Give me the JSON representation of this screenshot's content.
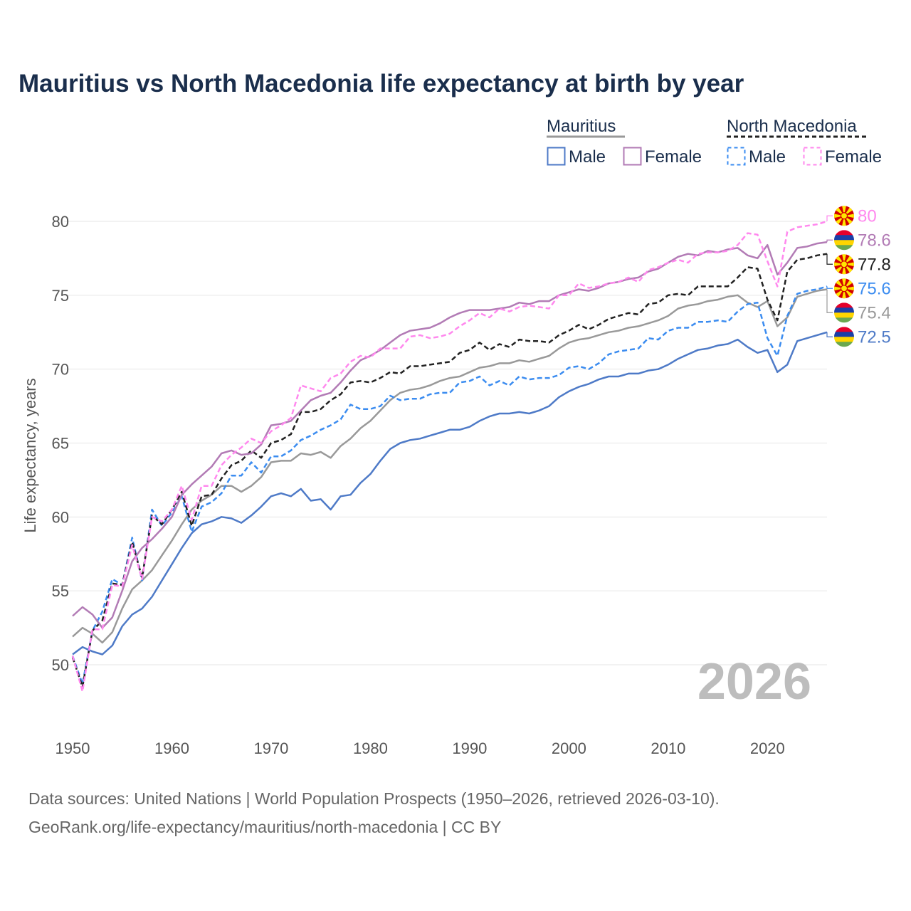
{
  "chart_data": {
    "type": "line",
    "title": "Mauritius vs North Macedonia life expectancy at birth by year",
    "xlabel": "",
    "ylabel": "Life expectancy, years",
    "xlim": [
      1950,
      2026
    ],
    "ylim": [
      47,
      82
    ],
    "x_ticks": [
      "1950",
      "1960",
      "1970",
      "1980",
      "1990",
      "2000",
      "2010",
      "2020"
    ],
    "y_ticks": [
      "50",
      "55",
      "60",
      "65",
      "70",
      "75",
      "80"
    ],
    "grid": true,
    "year_watermark": "2026",
    "legend": {
      "groups": [
        {
          "name": "Mauritius",
          "items": [
            "Male",
            "Female"
          ]
        },
        {
          "name": "North Macedonia",
          "items": [
            "Male",
            "Female"
          ]
        }
      ],
      "placement": "top-right"
    },
    "start_year": 1950,
    "series": [
      {
        "name": "North Macedonia Female",
        "country": "North Macedonia",
        "flag": "north-macedonia",
        "color": "#ff88ee",
        "dashed": true,
        "end_label": "80",
        "values": [
          50.6,
          48.2,
          52.4,
          52.4,
          55.4,
          55.3,
          58.1,
          55.8,
          60.0,
          59.7,
          60.5,
          62.1,
          59.8,
          62.1,
          62.1,
          63.5,
          64.2,
          64.7,
          65.3,
          65.0,
          65.8,
          66.2,
          66.7,
          68.9,
          68.7,
          68.5,
          69.4,
          69.7,
          70.5,
          70.9,
          70.8,
          71.4,
          71.4,
          71.4,
          72.2,
          72.3,
          72.1,
          72.2,
          72.4,
          72.9,
          73.3,
          73.8,
          73.5,
          74.1,
          73.9,
          74.2,
          74.3,
          74.2,
          74.1,
          75.0,
          75.0,
          75.8,
          75.5,
          75.6,
          75.8,
          75.9,
          76.2,
          75.9,
          76.7,
          76.9,
          77.2,
          77.4,
          77.2,
          77.8,
          77.9,
          77.9,
          78.0,
          78.4,
          79.2,
          79.1,
          77.3,
          75.6,
          79.3,
          79.6,
          79.7,
          79.8,
          80.0
        ]
      },
      {
        "name": "Mauritius Female",
        "country": "Mauritius",
        "flag": "mauritius",
        "color": "#b27bb5",
        "dashed": false,
        "end_label": "78.6",
        "values": [
          53.3,
          53.9,
          53.4,
          52.5,
          53.2,
          55.0,
          57.0,
          57.9,
          58.5,
          59.2,
          60.0,
          61.5,
          62.2,
          62.8,
          63.4,
          64.3,
          64.5,
          64.2,
          64.3,
          64.9,
          66.2,
          66.3,
          66.5,
          67.2,
          67.9,
          68.2,
          68.4,
          69.1,
          69.9,
          70.6,
          70.9,
          71.3,
          71.8,
          72.3,
          72.6,
          72.7,
          72.8,
          73.1,
          73.5,
          73.8,
          74.0,
          74.0,
          74.0,
          74.1,
          74.2,
          74.5,
          74.4,
          74.6,
          74.6,
          75.0,
          75.2,
          75.4,
          75.3,
          75.5,
          75.8,
          75.9,
          76.1,
          76.2,
          76.6,
          76.8,
          77.2,
          77.6,
          77.8,
          77.7,
          78.0,
          77.9,
          78.1,
          78.2,
          77.7,
          77.5,
          78.4,
          76.4,
          77.2,
          78.2,
          78.3,
          78.5,
          78.6
        ]
      },
      {
        "name": "North Macedonia",
        "country": "North Macedonia",
        "flag": "north-macedonia",
        "color": "#222222",
        "dashed": true,
        "end_label": "77.8",
        "values": [
          50.5,
          48.5,
          52.3,
          53.0,
          55.5,
          55.4,
          58.3,
          55.9,
          60.1,
          59.5,
          60.5,
          61.7,
          59.4,
          61.4,
          61.5,
          62.6,
          63.5,
          63.8,
          64.5,
          64.0,
          65.0,
          65.2,
          65.6,
          67.1,
          67.1,
          67.3,
          67.9,
          68.3,
          69.1,
          69.2,
          69.1,
          69.4,
          69.8,
          69.7,
          70.2,
          70.2,
          70.3,
          70.4,
          70.5,
          71.1,
          71.3,
          71.8,
          71.3,
          71.7,
          71.5,
          72.0,
          71.9,
          71.9,
          71.8,
          72.3,
          72.6,
          73.0,
          72.7,
          73.0,
          73.4,
          73.6,
          73.8,
          73.7,
          74.4,
          74.5,
          75.0,
          75.1,
          75.0,
          75.6,
          75.6,
          75.6,
          75.6,
          76.2,
          76.9,
          76.8,
          74.7,
          73.3,
          76.6,
          77.4,
          77.5,
          77.7,
          77.8
        ]
      },
      {
        "name": "North Macedonia Male",
        "country": "North Macedonia",
        "flag": "north-macedonia",
        "color": "#3b8cf0",
        "dashed": true,
        "end_label": "75.6",
        "values": [
          50.6,
          48.7,
          52.3,
          53.6,
          55.8,
          55.4,
          58.6,
          55.7,
          60.5,
          59.4,
          60.3,
          61.4,
          59.0,
          60.7,
          61.0,
          61.6,
          62.8,
          62.8,
          63.7,
          63.0,
          64.1,
          64.1,
          64.5,
          65.2,
          65.5,
          65.9,
          66.2,
          66.6,
          67.6,
          67.3,
          67.3,
          67.5,
          68.2,
          67.9,
          68.0,
          68.0,
          68.3,
          68.4,
          68.4,
          69.1,
          69.2,
          69.5,
          68.9,
          69.2,
          68.9,
          69.5,
          69.3,
          69.4,
          69.4,
          69.6,
          70.1,
          70.2,
          70.0,
          70.4,
          71.0,
          71.2,
          71.3,
          71.4,
          72.1,
          72.0,
          72.6,
          72.8,
          72.8,
          73.2,
          73.2,
          73.3,
          73.2,
          73.9,
          74.4,
          74.5,
          72.1,
          70.9,
          73.6,
          75.1,
          75.3,
          75.4,
          75.6
        ]
      },
      {
        "name": "Mauritius",
        "country": "Mauritius",
        "flag": "mauritius",
        "color": "#999999",
        "dashed": false,
        "end_label": "75.4",
        "values": [
          51.9,
          52.5,
          52.1,
          51.5,
          52.2,
          53.8,
          55.1,
          55.7,
          56.4,
          57.4,
          58.4,
          59.5,
          60.5,
          61.1,
          61.5,
          62.1,
          62.1,
          61.7,
          62.1,
          62.7,
          63.7,
          63.8,
          63.8,
          64.3,
          64.2,
          64.4,
          64.0,
          64.8,
          65.3,
          66.0,
          66.5,
          67.2,
          67.9,
          68.4,
          68.6,
          68.7,
          68.9,
          69.2,
          69.4,
          69.5,
          69.8,
          70.1,
          70.2,
          70.4,
          70.4,
          70.6,
          70.5,
          70.7,
          70.9,
          71.4,
          71.8,
          72.0,
          72.1,
          72.3,
          72.5,
          72.6,
          72.8,
          72.9,
          73.1,
          73.3,
          73.6,
          74.1,
          74.3,
          74.4,
          74.6,
          74.7,
          74.9,
          75.0,
          74.5,
          74.2,
          74.6,
          72.9,
          73.5,
          74.9,
          75.1,
          75.3,
          75.4
        ]
      },
      {
        "name": "Mauritius Male",
        "country": "Mauritius",
        "flag": "mauritius",
        "color": "#4e7ac7",
        "dashed": false,
        "end_label": "72.5",
        "values": [
          50.7,
          51.2,
          50.9,
          50.7,
          51.3,
          52.6,
          53.4,
          53.8,
          54.6,
          55.7,
          56.8,
          57.9,
          58.9,
          59.5,
          59.7,
          60.0,
          59.9,
          59.6,
          60.1,
          60.7,
          61.4,
          61.6,
          61.4,
          61.9,
          61.1,
          61.2,
          60.5,
          61.4,
          61.5,
          62.3,
          62.9,
          63.8,
          64.6,
          65.0,
          65.2,
          65.3,
          65.5,
          65.7,
          65.9,
          65.9,
          66.1,
          66.5,
          66.8,
          67.0,
          67.0,
          67.1,
          67.0,
          67.2,
          67.5,
          68.1,
          68.5,
          68.8,
          69.0,
          69.3,
          69.5,
          69.5,
          69.7,
          69.7,
          69.9,
          70.0,
          70.3,
          70.7,
          71.0,
          71.3,
          71.4,
          71.6,
          71.7,
          72.0,
          71.5,
          71.1,
          71.3,
          69.8,
          70.3,
          71.9,
          72.1,
          72.3,
          72.5
        ]
      }
    ],
    "source_lines": [
      "Data sources: United Nations | World Population Prospects (1950–2026, retrieved 2026-03-10).",
      "GeoRank.org/life-expectancy/mauritius/north-macedonia | CC BY"
    ]
  }
}
